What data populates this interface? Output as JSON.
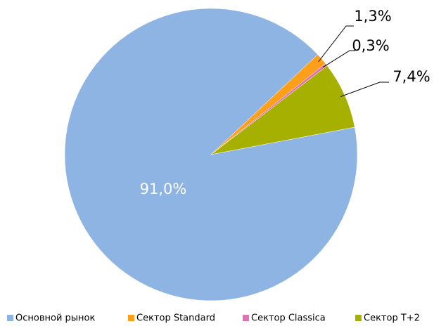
{
  "chart_data": {
    "type": "pie",
    "categories": [
      "Основной рынок",
      "Сектор Standard",
      "Сектор Classica",
      "Сектор T+2"
    ],
    "values": [
      91.0,
      1.3,
      0.3,
      7.4
    ],
    "value_labels": [
      "91,0%",
      "1,3%",
      "0,3%",
      "7,4%"
    ],
    "colors": [
      "#8eb4e3",
      "#ff9f1a",
      "#e46fb4",
      "#a6b000"
    ],
    "legend": "bottom"
  }
}
